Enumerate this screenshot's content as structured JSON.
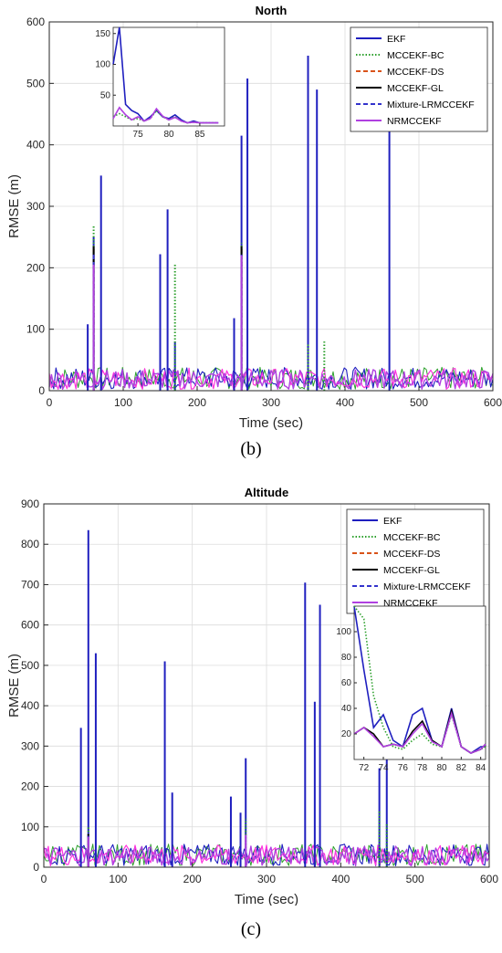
{
  "chart_data": [
    {
      "type": "line",
      "title": "North",
      "xlabel": "Time (sec)",
      "ylabel": "RMSE (m)",
      "panel_label": "(b)",
      "xlim": [
        0,
        600
      ],
      "ylim": [
        0,
        600
      ],
      "xticks": [
        0,
        100,
        200,
        300,
        400,
        500,
        600
      ],
      "yticks": [
        0,
        100,
        200,
        300,
        400,
        500,
        600
      ],
      "grid": true,
      "legend_position": "top-right",
      "series": [
        {
          "name": "EKF",
          "color": "#1f1fbf",
          "style": "solid",
          "peaks": [
            [
              52,
              108
            ],
            [
              60,
              250
            ],
            [
              70,
              350
            ],
            [
              150,
              222
            ],
            [
              160,
              295
            ],
            [
              170,
              80
            ],
            [
              250,
              118
            ],
            [
              260,
              415
            ],
            [
              268,
              508
            ],
            [
              350,
              545
            ],
            [
              362,
              490
            ],
            [
              460,
              440
            ]
          ]
        },
        {
          "name": "MCCEKF-BC",
          "color": "#2ca02c",
          "style": "dotted",
          "peaks": [
            [
              60,
              268
            ],
            [
              170,
              208
            ],
            [
              260,
              240
            ],
            [
              350,
              78
            ],
            [
              372,
              80
            ]
          ]
        },
        {
          "name": "MCCEKF-DS",
          "color": "#d95319",
          "style": "dashed",
          "peaks": [
            [
              60,
              230
            ],
            [
              260,
              230
            ]
          ]
        },
        {
          "name": "MCCEKF-GL",
          "color": "#000000",
          "style": "solid",
          "peaks": [
            [
              60,
              235
            ],
            [
              260,
              235
            ]
          ]
        },
        {
          "name": "Mixture-LRMCCEKF",
          "color": "#3333cc",
          "style": "dashed",
          "peaks": [
            [
              60,
              225
            ],
            [
              260,
              225
            ]
          ]
        },
        {
          "name": "NRMCCEKF",
          "color": "#b040e0",
          "style": "solid",
          "peaks": [
            [
              60,
              205
            ],
            [
              260,
              220
            ]
          ]
        }
      ],
      "inset": {
        "xlim": [
          71,
          89
        ],
        "ylim": [
          0,
          160
        ],
        "xticks": [
          75,
          80,
          85
        ],
        "yticks": [
          50,
          100,
          150
        ],
        "series": [
          {
            "name": "EKF",
            "color": "#1f1fbf",
            "style": "solid",
            "x": [
              71,
              72,
              73,
              74,
              75,
              76,
              77,
              78,
              79,
              80,
              81,
              82,
              83,
              84,
              85,
              86,
              87,
              88
            ],
            "y": [
              100,
              170,
              35,
              25,
              20,
              8,
              15,
              25,
              15,
              12,
              18,
              10,
              5,
              8,
              5,
              5,
              5,
              5
            ]
          },
          {
            "name": "MCCEKF-BC",
            "color": "#2ca02c",
            "style": "dotted",
            "x": [
              71,
              72,
              73,
              74,
              75,
              76,
              77,
              78,
              79,
              80,
              81,
              82,
              83,
              84,
              85,
              86,
              87,
              88
            ],
            "y": [
              15,
              20,
              15,
              10,
              12,
              8,
              12,
              25,
              15,
              10,
              15,
              8,
              5,
              6,
              5,
              5,
              5,
              5
            ]
          },
          {
            "name": "NRMCCEKF",
            "color": "#b040e0",
            "style": "solid",
            "x": [
              71,
              72,
              73,
              74,
              75,
              76,
              77,
              78,
              79,
              80,
              81,
              82,
              83,
              84,
              85,
              86,
              87,
              88
            ],
            "y": [
              12,
              30,
              18,
              10,
              15,
              8,
              12,
              28,
              16,
              10,
              14,
              8,
              5,
              6,
              5,
              5,
              5,
              5
            ]
          }
        ]
      }
    },
    {
      "type": "line",
      "title": "Altitude",
      "xlabel": "Time (sec)",
      "ylabel": "RMSE (m)",
      "panel_label": "(c)",
      "xlim": [
        0,
        600
      ],
      "ylim": [
        0,
        900
      ],
      "xticks": [
        0,
        100,
        200,
        300,
        400,
        500,
        600
      ],
      "yticks": [
        0,
        100,
        200,
        300,
        400,
        500,
        600,
        700,
        800,
        900
      ],
      "grid": true,
      "legend_position": "top-right",
      "series": [
        {
          "name": "EKF",
          "color": "#1f1fbf",
          "style": "solid",
          "peaks": [
            [
              50,
              345
            ],
            [
              60,
              835
            ],
            [
              70,
              530
            ],
            [
              163,
              510
            ],
            [
              173,
              185
            ],
            [
              252,
              175
            ],
            [
              265,
              135
            ],
            [
              272,
              270
            ],
            [
              352,
              705
            ],
            [
              365,
              410
            ],
            [
              372,
              650
            ],
            [
              452,
              245
            ],
            [
              462,
              340
            ]
          ]
        },
        {
          "name": "MCCEKF-BC",
          "color": "#2ca02c",
          "style": "dotted",
          "peaks": [
            [
              60,
              100
            ],
            [
              272,
              120
            ],
            [
              452,
              140
            ],
            [
              462,
              110
            ]
          ]
        },
        {
          "name": "MCCEKF-DS",
          "color": "#d95319",
          "style": "dashed",
          "peaks": [
            [
              60,
              80
            ]
          ]
        },
        {
          "name": "MCCEKF-GL",
          "color": "#000000",
          "style": "solid",
          "peaks": [
            [
              60,
              82
            ]
          ]
        },
        {
          "name": "Mixture-LRMCCEKF",
          "color": "#3333cc",
          "style": "dashed",
          "peaks": [
            [
              60,
              78
            ]
          ]
        },
        {
          "name": "NRMCCEKF",
          "color": "#b040e0",
          "style": "solid",
          "peaks": [
            [
              60,
              75
            ],
            [
              272,
              80
            ]
          ]
        }
      ],
      "inset": {
        "xlim": [
          71,
          84.5
        ],
        "ylim": [
          0,
          120
        ],
        "xticks": [
          72,
          74,
          76,
          78,
          80,
          82,
          84
        ],
        "yticks": [
          20,
          40,
          60,
          80,
          100
        ],
        "series": [
          {
            "name": "EKF",
            "color": "#1f1fbf",
            "style": "solid",
            "x": [
              71,
              72,
              73,
              74,
              75,
              76,
              77,
              78,
              79,
              80,
              81,
              82,
              83,
              84,
              84.5
            ],
            "y": [
              130,
              70,
              25,
              35,
              15,
              10,
              35,
              40,
              15,
              10,
              40,
              10,
              5,
              10,
              10
            ]
          },
          {
            "name": "MCCEKF-BC",
            "color": "#2ca02c",
            "style": "dotted",
            "x": [
              71,
              72,
              73,
              74,
              75,
              76,
              77,
              78,
              79,
              80,
              81,
              82,
              83,
              84,
              84.5
            ],
            "y": [
              140,
              110,
              50,
              25,
              10,
              8,
              15,
              20,
              12,
              10,
              35,
              10,
              5,
              8,
              10
            ]
          },
          {
            "name": "MCCEKF-GL",
            "color": "#000000",
            "style": "solid",
            "x": [
              71,
              72,
              73,
              74,
              75,
              76,
              77,
              78,
              79,
              80,
              81,
              82,
              83,
              84,
              84.5
            ],
            "y": [
              20,
              25,
              20,
              10,
              12,
              10,
              22,
              30,
              15,
              10,
              38,
              10,
              5,
              8,
              12
            ]
          },
          {
            "name": "NRMCCEKF",
            "color": "#b040e0",
            "style": "solid",
            "x": [
              71,
              72,
              73,
              74,
              75,
              76,
              77,
              78,
              79,
              80,
              81,
              82,
              83,
              84,
              84.5
            ],
            "y": [
              20,
              25,
              18,
              10,
              12,
              10,
              20,
              28,
              14,
              10,
              36,
              10,
              5,
              8,
              12
            ]
          }
        ]
      }
    }
  ]
}
